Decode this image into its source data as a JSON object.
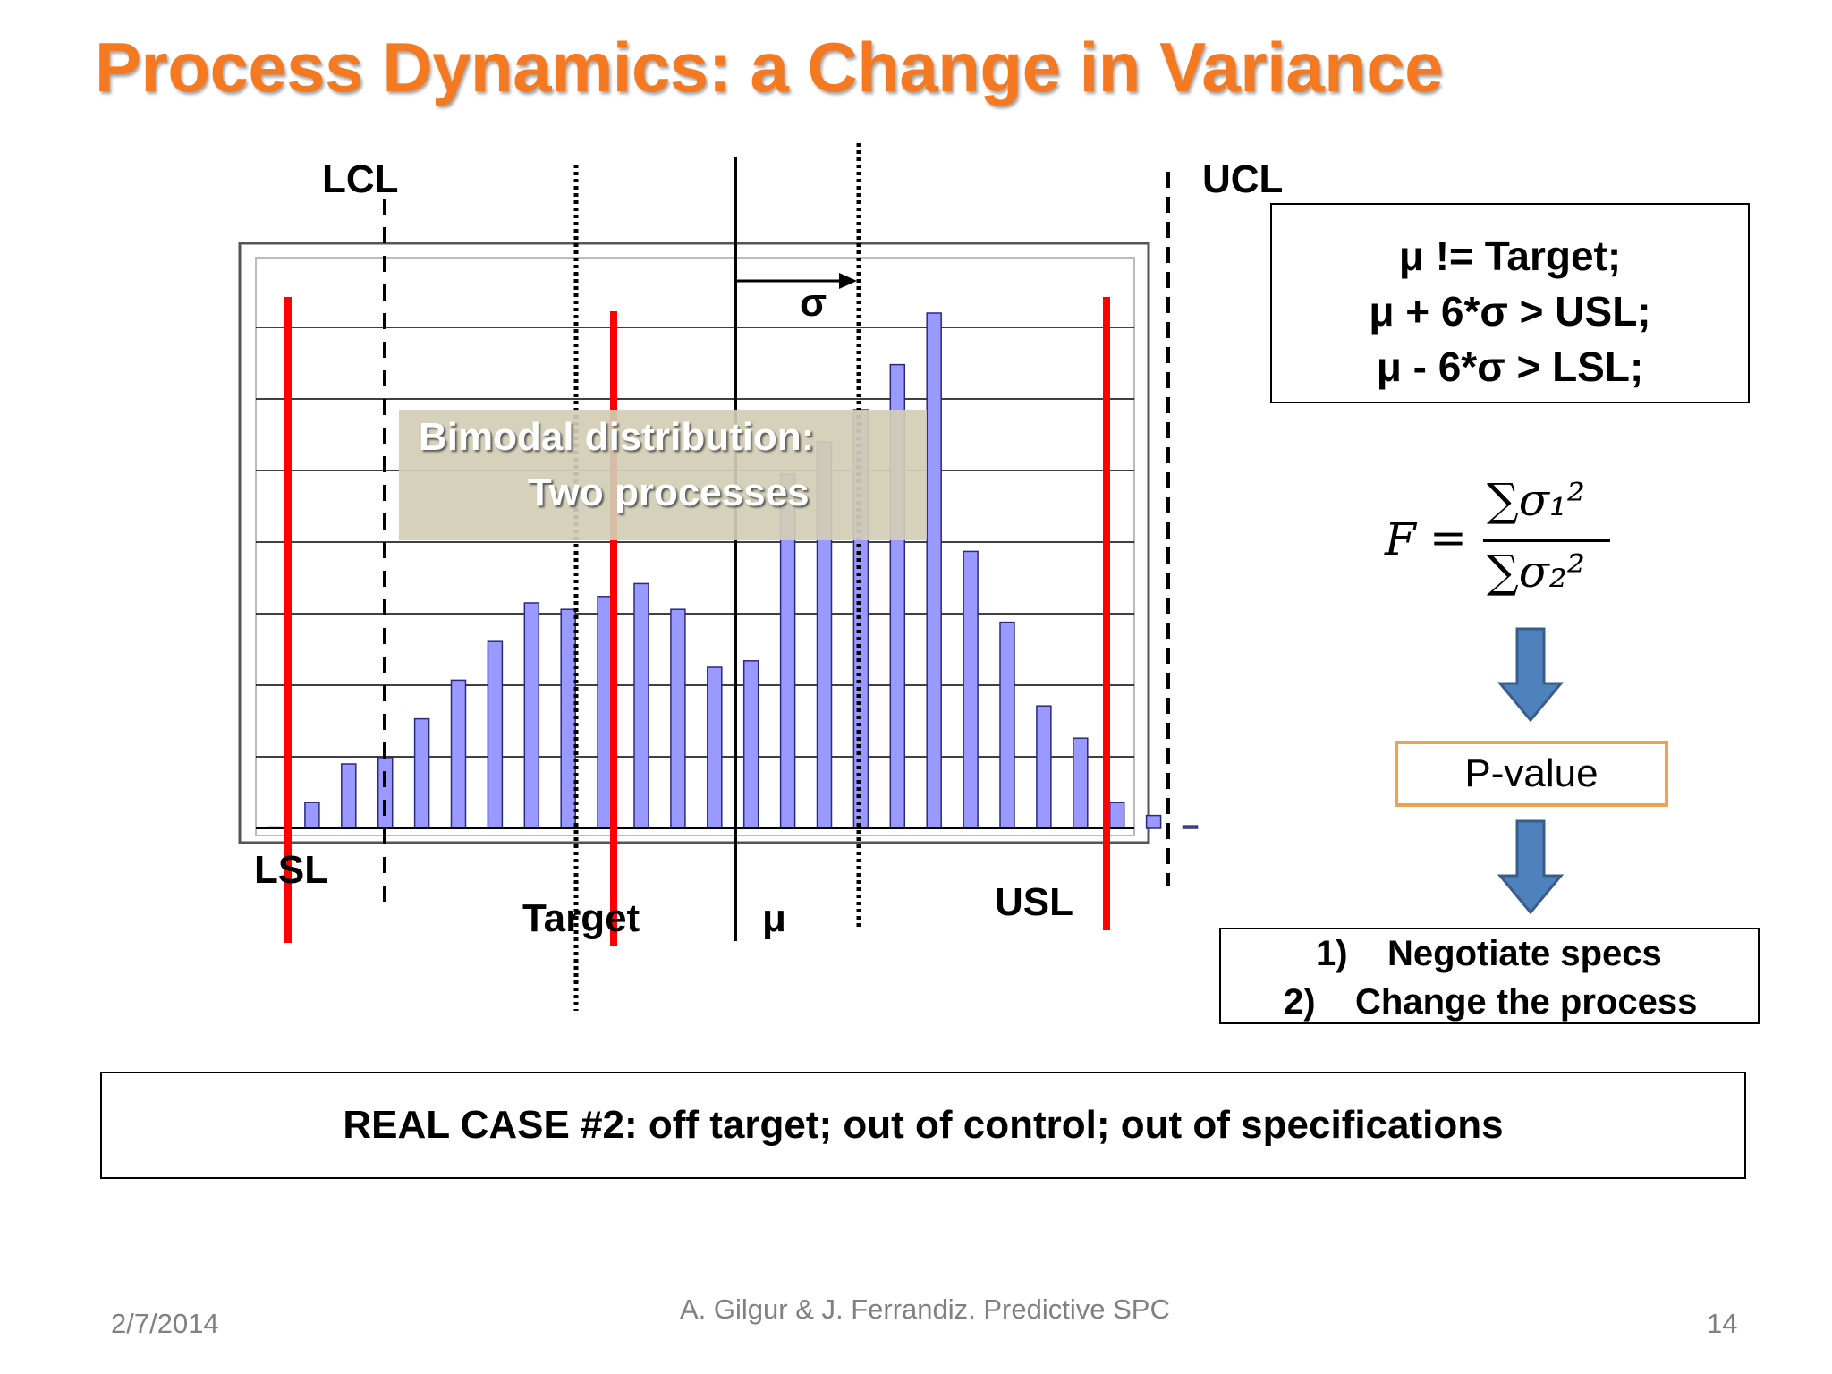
{
  "slide": {
    "title": "Process Dynamics: a Change in Variance",
    "labels": {
      "lcl": "LCL",
      "ucl": "UCL",
      "lsl": "LSL",
      "usl": "USL",
      "target": "Target",
      "mu": "μ",
      "sigma": "σ"
    },
    "overlay": {
      "line1": "Bimodal distribution:",
      "line2": "Two processes"
    },
    "conditions": [
      "μ != Target;",
      "μ + 6*σ > USL;",
      "μ - 6*σ > LSL;"
    ],
    "formula": {
      "lhs": "F",
      "eq": "=",
      "numerator": "∑σ₁²",
      "denominator": "∑σ₂²"
    },
    "pvalue_label": "P-value",
    "actions": [
      {
        "num": "1)",
        "text": "Negotiate specs"
      },
      {
        "num": "2)",
        "text": "Change the process"
      }
    ],
    "case_text": "REAL CASE #2: off target; out of control; out of specifications",
    "footer": {
      "date": "2/7/2014",
      "authors": "A. Gilgur & J. Ferrandiz.  Predictive SPC",
      "page": "14"
    },
    "colors": {
      "title": "#f47920",
      "bars": "#9999ff",
      "spec_lines": "#ff0000",
      "arrows": "#4f81bd",
      "pvalue_border": "#f0a050"
    }
  },
  "chart_data": {
    "type": "bar",
    "values": [
      0.2,
      4,
      10,
      11,
      17,
      23,
      29,
      35,
      34,
      36,
      38,
      34,
      25,
      26,
      55,
      60,
      65,
      72,
      80,
      43,
      32,
      19,
      14,
      4,
      2,
      0.4
    ],
    "ylim": [
      0,
      80
    ],
    "grid": true
  }
}
